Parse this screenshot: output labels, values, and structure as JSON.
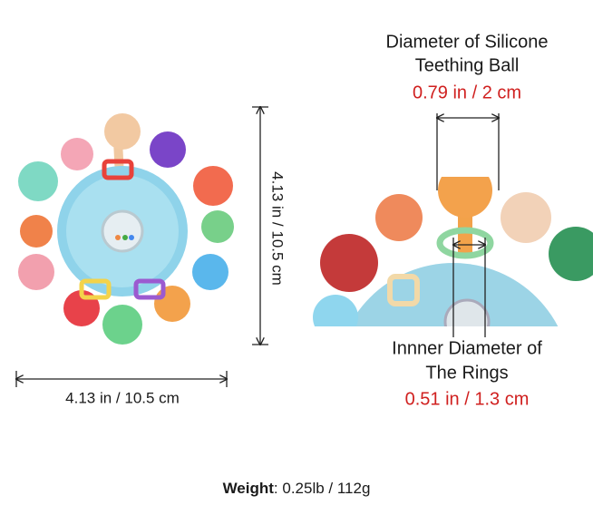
{
  "height_label": "4.13 in / 10.5 cm",
  "width_label": "4.13 in / 10.5 cm",
  "ball": {
    "label": [
      "Diameter of Silicone",
      "Teething Ball"
    ],
    "value": "0.79 in / 2 cm"
  },
  "ring": {
    "label": [
      "Innner Diameter of",
      "The Rings"
    ],
    "value": "0.51 in / 1.3 cm"
  },
  "weight": {
    "label": "Weight",
    "value": ": 0.25lb / 112g"
  }
}
